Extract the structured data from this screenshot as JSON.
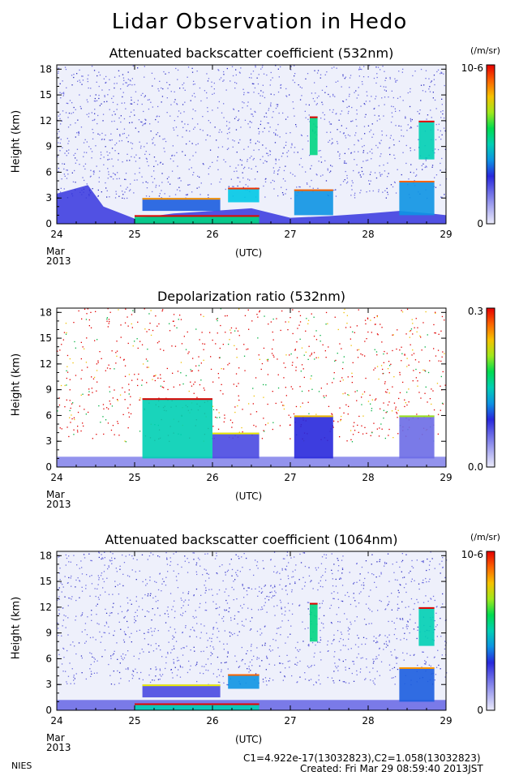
{
  "title": "Lidar Observation in Hedo",
  "footer": {
    "org": "NIES",
    "calibration": "C1=4.922e-17(13032823),C2=1.058(13032823)",
    "created": "Created: Fri Mar 29 08:59:40 2013JST"
  },
  "chart_data": [
    {
      "type": "heatmap",
      "title": "Attenuated backscatter coefficient (532nm)",
      "ylabel": "Height (km)",
      "xlabel": "(UTC)",
      "x_ticks": [
        "24",
        "25",
        "26",
        "27",
        "28",
        "29"
      ],
      "x_start_label": [
        "Mar",
        "2013"
      ],
      "y_ticks": [
        "0",
        "3",
        "6",
        "9",
        "12",
        "15",
        "18"
      ],
      "ylim": [
        0,
        18.5
      ],
      "xlim": [
        24,
        29
      ],
      "colorbar": {
        "units": "(/m/sr)",
        "max_label": "10-6",
        "min_label": "0"
      },
      "features": {
        "boundary_layer_top_km": [
          [
            24.0,
            3.5
          ],
          [
            24.4,
            4.5
          ],
          [
            24.6,
            2.0
          ],
          [
            25.0,
            0.6
          ],
          [
            25.5,
            1.2
          ],
          [
            26.0,
            1.5
          ],
          [
            26.5,
            1.8
          ],
          [
            27.0,
            0.7
          ],
          [
            27.5,
            0.9
          ],
          [
            28.0,
            1.2
          ],
          [
            28.4,
            1.5
          ],
          [
            28.8,
            1.2
          ],
          [
            29.0,
            1.0
          ]
        ],
        "clouds": [
          {
            "x": [
              25.1,
              26.1
            ],
            "y": [
              1.5,
              3.0
            ],
            "level": 0.35
          },
          {
            "x": [
              26.2,
              26.6
            ],
            "y": [
              2.5,
              4.2
            ],
            "level": 0.45
          },
          {
            "x": [
              27.05,
              27.55
            ],
            "y": [
              1.0,
              4.0
            ],
            "level": 0.4
          },
          {
            "x": [
              27.25,
              27.35
            ],
            "y": [
              8.0,
              12.5
            ],
            "level": 0.55
          },
          {
            "x": [
              28.4,
              28.85
            ],
            "y": [
              1.0,
              5.0
            ],
            "level": 0.4
          },
          {
            "x": [
              28.65,
              28.85
            ],
            "y": [
              7.5,
              12.0
            ],
            "level": 0.5
          }
        ],
        "aerosol_layer": {
          "x": [
            25.0,
            26.6
          ],
          "y": [
            0,
            1.0
          ],
          "level": 0.55
        }
      }
    },
    {
      "type": "heatmap",
      "title": "Depolarization ratio (532nm)",
      "ylabel": "Height (km)",
      "xlabel": "(UTC)",
      "x_ticks": [
        "24",
        "25",
        "26",
        "27",
        "28",
        "29"
      ],
      "x_start_label": [
        "Mar",
        "2013"
      ],
      "y_ticks": [
        "0",
        "3",
        "6",
        "9",
        "12",
        "15",
        "18"
      ],
      "ylim": [
        0,
        18.5
      ],
      "xlim": [
        24,
        29
      ],
      "colorbar": {
        "units": "",
        "max_label": "0.3",
        "min_label": "0.0"
      },
      "features": {
        "dust_layer": {
          "x": [
            25.1,
            26.0
          ],
          "y": [
            1.0,
            8.0
          ],
          "level": 0.5
        },
        "clouds": [
          {
            "x": [
              26.0,
              26.6
            ],
            "y": [
              1.0,
              4.0
            ],
            "level": 0.25
          },
          {
            "x": [
              27.05,
              27.55
            ],
            "y": [
              1.0,
              6.0
            ],
            "level": 0.3
          },
          {
            "x": [
              28.4,
              28.85
            ],
            "y": [
              1.0,
              6.0
            ],
            "level": 0.2
          }
        ]
      }
    },
    {
      "type": "heatmap",
      "title": "Attenuated backscatter coefficient (1064nm)",
      "ylabel": "Height (km)",
      "xlabel": "(UTC)",
      "x_ticks": [
        "24",
        "25",
        "26",
        "27",
        "28",
        "29"
      ],
      "x_start_label": [
        "Mar",
        "2013"
      ],
      "y_ticks": [
        "0",
        "3",
        "6",
        "9",
        "12",
        "15",
        "18"
      ],
      "ylim": [
        0,
        18.5
      ],
      "xlim": [
        24,
        29
      ],
      "colorbar": {
        "units": "(/m/sr)",
        "max_label": "10-6",
        "min_label": "0"
      },
      "features": {
        "clouds": [
          {
            "x": [
              25.1,
              26.1
            ],
            "y": [
              1.5,
              3.0
            ],
            "level": 0.25
          },
          {
            "x": [
              26.2,
              26.6
            ],
            "y": [
              2.5,
              4.2
            ],
            "level": 0.4
          },
          {
            "x": [
              27.25,
              27.35
            ],
            "y": [
              8.0,
              12.5
            ],
            "level": 0.55
          },
          {
            "x": [
              28.4,
              28.85
            ],
            "y": [
              1.0,
              5.0
            ],
            "level": 0.35
          },
          {
            "x": [
              28.65,
              28.85
            ],
            "y": [
              7.5,
              12.0
            ],
            "level": 0.5
          }
        ],
        "aerosol_layer": {
          "x": [
            25.0,
            26.6
          ],
          "y": [
            0,
            0.8
          ],
          "level": 0.5
        }
      }
    }
  ]
}
